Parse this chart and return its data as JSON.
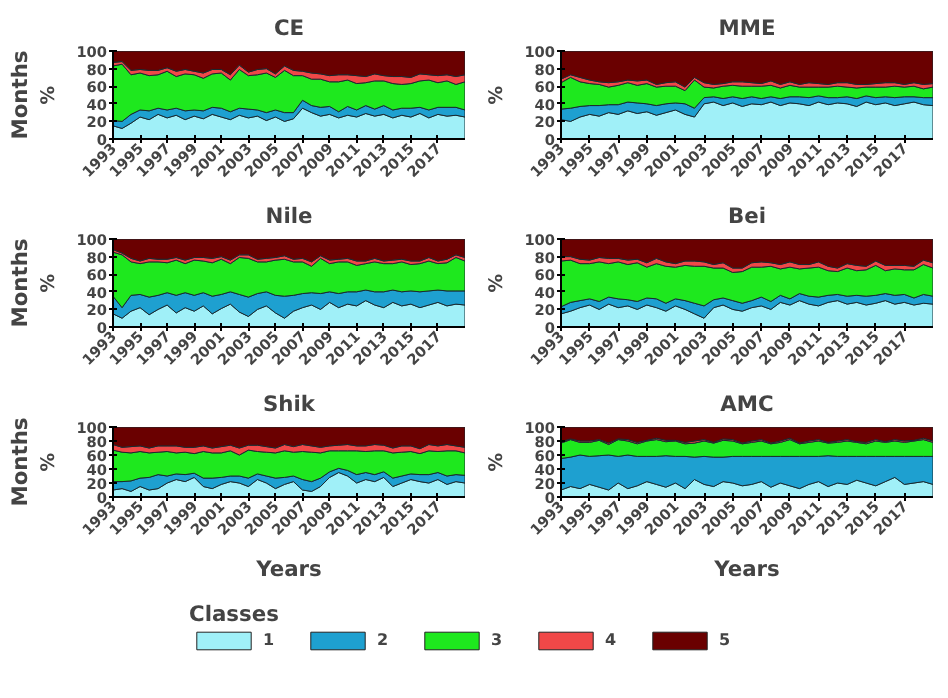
{
  "chart_data": [
    {
      "type": "area",
      "stacked": true,
      "title": "CE",
      "ylabel": "%",
      "annotations": [
        "Months"
      ],
      "xlim": [
        1993,
        2019
      ],
      "xticks": [
        1993,
        1995,
        1997,
        1999,
        2001,
        2003,
        2005,
        2007,
        2009,
        2011,
        2013,
        2015,
        2017
      ],
      "ylim": [
        0,
        100
      ],
      "yticks": [
        0,
        20,
        40,
        60,
        80,
        100
      ],
      "x": [
        1993,
        1993.67,
        1994.33,
        1995,
        1995.67,
        1996.33,
        1997,
        1997.67,
        1998.33,
        1999,
        1999.67,
        2000.33,
        2001,
        2001.67,
        2002.33,
        2003,
        2003.67,
        2004.33,
        2005,
        2005.67,
        2006.33,
        2007,
        2007.67,
        2008.33,
        2009,
        2009.67,
        2010.33,
        2011,
        2011.67,
        2012.33,
        2013,
        2013.67,
        2014.33,
        2015,
        2015.67,
        2016.33,
        2017,
        2017.67,
        2018.33,
        2019
      ],
      "series": [
        {
          "color": "#a0f0f8",
          "values": [
            15,
            12,
            18,
            25,
            22,
            28,
            24,
            27,
            22,
            26,
            23,
            28,
            25,
            22,
            27,
            24,
            26,
            21,
            25,
            20,
            23,
            35,
            30,
            26,
            28,
            24,
            27,
            25,
            29,
            26,
            28,
            24,
            27,
            25,
            29,
            24,
            28,
            26,
            27,
            25
          ]
        },
        {
          "color": "#1ea0d0",
          "values": [
            6,
            8,
            10,
            8,
            10,
            7,
            9,
            8,
            10,
            7,
            9,
            8,
            10,
            9,
            8,
            10,
            7,
            9,
            8,
            10,
            7,
            9,
            8,
            10,
            9,
            7,
            10,
            8,
            9,
            8,
            10,
            9,
            8,
            10,
            7,
            9,
            8,
            10,
            9,
            8
          ]
        },
        {
          "color": "#1ee81e",
          "values": [
            62,
            65,
            45,
            42,
            40,
            38,
            44,
            36,
            42,
            40,
            37,
            38,
            40,
            36,
            44,
            38,
            40,
            45,
            37,
            48,
            42,
            28,
            30,
            32,
            28,
            34,
            30,
            30,
            26,
            32,
            28,
            30,
            27,
            28,
            30,
            34,
            28,
            30,
            26,
            32
          ]
        },
        {
          "color": "#f04848",
          "values": [
            4,
            3,
            5,
            4,
            6,
            5,
            4,
            6,
            5,
            4,
            6,
            5,
            4,
            6,
            5,
            4,
            6,
            5,
            4,
            5,
            6,
            5,
            7,
            6,
            7,
            8,
            6,
            9,
            7,
            8,
            6,
            8,
            9,
            7,
            8,
            6,
            8,
            7,
            9,
            8
          ]
        },
        {
          "color": "#6a0000",
          "values": [
            13,
            12,
            22,
            21,
            22,
            22,
            19,
            23,
            21,
            23,
            25,
            21,
            21,
            27,
            16,
            24,
            21,
            20,
            26,
            17,
            22,
            23,
            25,
            26,
            28,
            27,
            27,
            28,
            29,
            26,
            28,
            29,
            29,
            30,
            26,
            27,
            28,
            27,
            29,
            27
          ]
        }
      ]
    },
    {
      "type": "area",
      "stacked": true,
      "title": "MME",
      "ylabel": "%",
      "xlim": [
        1993,
        2019
      ],
      "xticks": [
        1993,
        1995,
        1997,
        1999,
        2001,
        2003,
        2005,
        2007,
        2009,
        2011,
        2013,
        2015,
        2017
      ],
      "ylim": [
        0,
        100
      ],
      "yticks": [
        0,
        20,
        40,
        60,
        80,
        100
      ],
      "x": [
        1993,
        1993.67,
        1994.33,
        1995,
        1995.67,
        1996.33,
        1997,
        1997.67,
        1998.33,
        1999,
        1999.67,
        2000.33,
        2001,
        2001.67,
        2002.33,
        2003,
        2003.67,
        2004.33,
        2005,
        2005.67,
        2006.33,
        2007,
        2007.67,
        2008.33,
        2009,
        2009.67,
        2010.33,
        2011,
        2011.67,
        2012.33,
        2013,
        2013.67,
        2014.33,
        2015,
        2015.67,
        2016.33,
        2017,
        2017.67,
        2018.33,
        2019
      ],
      "series": [
        {
          "color": "#a0f0f8",
          "values": [
            22,
            20,
            25,
            28,
            26,
            30,
            28,
            32,
            29,
            31,
            27,
            30,
            33,
            28,
            25,
            40,
            42,
            38,
            41,
            37,
            40,
            39,
            42,
            38,
            41,
            40,
            38,
            42,
            39,
            41,
            40,
            37,
            42,
            39,
            41,
            38,
            40,
            42,
            39,
            38
          ]
        },
        {
          "color": "#1ea0d0",
          "values": [
            12,
            15,
            12,
            10,
            12,
            9,
            11,
            10,
            12,
            9,
            11,
            10,
            8,
            12,
            10,
            7,
            6,
            8,
            7,
            9,
            8,
            7,
            6,
            8,
            7,
            8,
            9,
            7,
            8,
            6,
            8,
            9,
            7,
            8,
            7,
            9,
            8,
            6,
            8,
            9
          ]
        },
        {
          "color": "#1ee81e",
          "values": [
            30,
            35,
            28,
            25,
            24,
            20,
            22,
            22,
            20,
            23,
            21,
            20,
            19,
            15,
            32,
            12,
            10,
            14,
            13,
            14,
            12,
            14,
            13,
            12,
            13,
            11,
            12,
            10,
            12,
            13,
            11,
            12,
            10,
            12,
            11,
            13,
            11,
            12,
            10,
            12
          ]
        },
        {
          "color": "#f04848",
          "values": [
            4,
            3,
            5,
            4,
            3,
            5,
            4,
            3,
            5,
            4,
            3,
            4,
            5,
            4,
            3,
            5,
            4,
            3,
            4,
            5,
            4,
            3,
            5,
            4,
            4,
            3,
            5,
            4,
            3,
            4,
            5,
            4,
            3,
            4,
            5,
            4,
            3,
            4,
            5,
            4
          ]
        },
        {
          "color": "#6a0000",
          "values": [
            32,
            27,
            30,
            33,
            35,
            36,
            35,
            33,
            34,
            33,
            38,
            36,
            35,
            41,
            30,
            36,
            38,
            37,
            35,
            35,
            36,
            37,
            34,
            38,
            35,
            38,
            36,
            37,
            38,
            36,
            36,
            38,
            38,
            37,
            36,
            36,
            38,
            36,
            38,
            37
          ]
        }
      ]
    },
    {
      "type": "area",
      "stacked": true,
      "title": "Nile",
      "ylabel": "%",
      "annotations": [
        "Months"
      ],
      "xlim": [
        1993,
        2019
      ],
      "xticks": [
        1993,
        1995,
        1997,
        1999,
        2001,
        2003,
        2005,
        2007,
        2009,
        2011,
        2013,
        2015,
        2017
      ],
      "ylim": [
        0,
        100
      ],
      "yticks": [
        0,
        20,
        40,
        60,
        80,
        100
      ],
      "x": [
        1993,
        1993.67,
        1994.33,
        1995,
        1995.67,
        1996.33,
        1997,
        1997.67,
        1998.33,
        1999,
        1999.67,
        2000.33,
        2001,
        2001.67,
        2002.33,
        2003,
        2003.67,
        2004.33,
        2005,
        2005.67,
        2006.33,
        2007,
        2007.67,
        2008.33,
        2009,
        2009.67,
        2010.33,
        2011,
        2011.67,
        2012.33,
        2013,
        2013.67,
        2014.33,
        2015,
        2015.67,
        2016.33,
        2017,
        2017.67,
        2018.33,
        2019
      ],
      "series": [
        {
          "color": "#a0f0f8",
          "values": [
            15,
            10,
            18,
            22,
            14,
            20,
            25,
            16,
            22,
            18,
            24,
            15,
            21,
            26,
            17,
            12,
            20,
            24,
            16,
            10,
            18,
            22,
            25,
            20,
            28,
            22,
            26,
            24,
            30,
            25,
            22,
            28,
            24,
            26,
            22,
            25,
            28,
            24,
            26,
            25
          ]
        },
        {
          "color": "#1ea0d0",
          "values": [
            20,
            12,
            18,
            15,
            20,
            16,
            14,
            20,
            17,
            18,
            15,
            20,
            16,
            14,
            20,
            22,
            18,
            16,
            20,
            25,
            18,
            16,
            14,
            18,
            12,
            16,
            14,
            16,
            12,
            15,
            18,
            14,
            16,
            15,
            18,
            16,
            14,
            17,
            15,
            16
          ]
        },
        {
          "color": "#1ee81e",
          "values": [
            50,
            60,
            38,
            35,
            40,
            38,
            34,
            40,
            33,
            40,
            36,
            38,
            40,
            32,
            42,
            44,
            36,
            34,
            40,
            42,
            38,
            36,
            30,
            40,
            32,
            36,
            34,
            30,
            30,
            34,
            32,
            30,
            34,
            30,
            32,
            34,
            30,
            32,
            38,
            34
          ]
        },
        {
          "color": "#f04848",
          "values": [
            3,
            2,
            4,
            3,
            4,
            3,
            4,
            3,
            4,
            3,
            4,
            5,
            3,
            4,
            3,
            4,
            3,
            4,
            3,
            4,
            3,
            4,
            5,
            3,
            4,
            3,
            4,
            5,
            3,
            4,
            3,
            4,
            3,
            4,
            3,
            4,
            3,
            4,
            3,
            4
          ]
        },
        {
          "color": "#6a0000",
          "values": [
            12,
            16,
            22,
            25,
            22,
            23,
            23,
            21,
            24,
            21,
            21,
            22,
            20,
            24,
            18,
            18,
            23,
            22,
            21,
            19,
            23,
            22,
            26,
            19,
            24,
            23,
            22,
            25,
            25,
            22,
            25,
            24,
            23,
            25,
            25,
            21,
            25,
            23,
            18,
            21
          ]
        }
      ]
    },
    {
      "type": "area",
      "stacked": true,
      "title": "Bei",
      "ylabel": "%",
      "xlim": [
        1993,
        2019
      ],
      "xticks": [
        1993,
        1995,
        1997,
        1999,
        2001,
        2003,
        2005,
        2007,
        2009,
        2011,
        2013,
        2015,
        2017
      ],
      "ylim": [
        0,
        100
      ],
      "yticks": [
        0,
        20,
        40,
        60,
        80,
        100
      ],
      "x": [
        1993,
        1993.67,
        1994.33,
        1995,
        1995.67,
        1996.33,
        1997,
        1997.67,
        1998.33,
        1999,
        1999.67,
        2000.33,
        2001,
        2001.67,
        2002.33,
        2003,
        2003.67,
        2004.33,
        2005,
        2005.67,
        2006.33,
        2007,
        2007.67,
        2008.33,
        2009,
        2009.67,
        2010.33,
        2011,
        2011.67,
        2012.33,
        2013,
        2013.67,
        2014.33,
        2015,
        2015.67,
        2016.33,
        2017,
        2017.67,
        2018.33,
        2019
      ],
      "series": [
        {
          "color": "#a0f0f8",
          "values": [
            15,
            18,
            22,
            25,
            20,
            26,
            22,
            24,
            20,
            25,
            22,
            18,
            24,
            20,
            15,
            10,
            22,
            25,
            20,
            18,
            22,
            24,
            20,
            28,
            25,
            30,
            26,
            24,
            28,
            30,
            26,
            28,
            25,
            27,
            30,
            26,
            28,
            25,
            27,
            26
          ]
        },
        {
          "color": "#1ea0d0",
          "values": [
            8,
            10,
            8,
            7,
            9,
            8,
            10,
            7,
            9,
            8,
            10,
            9,
            8,
            10,
            12,
            14,
            9,
            8,
            10,
            9,
            8,
            10,
            9,
            8,
            7,
            8,
            9,
            10,
            8,
            7,
            9,
            8,
            10,
            9,
            8,
            10,
            9,
            8,
            10,
            9
          ]
        },
        {
          "color": "#1ee81e",
          "values": [
            52,
            48,
            42,
            40,
            45,
            38,
            42,
            40,
            44,
            35,
            40,
            42,
            36,
            40,
            42,
            45,
            36,
            34,
            32,
            36,
            38,
            34,
            40,
            30,
            36,
            28,
            32,
            34,
            28,
            26,
            32,
            28,
            30,
            34,
            26,
            30,
            28,
            32,
            34,
            32
          ]
        },
        {
          "color": "#f04848",
          "values": [
            5,
            4,
            5,
            4,
            5,
            6,
            4,
            5,
            4,
            5,
            6,
            5,
            4,
            5,
            6,
            5,
            4,
            6,
            5,
            4,
            5,
            6,
            4,
            5,
            6,
            5,
            4,
            6,
            5,
            4,
            5,
            6,
            4,
            5,
            6,
            4,
            5,
            4,
            5,
            6
          ]
        },
        {
          "color": "#6a0000",
          "values": [
            20,
            20,
            23,
            24,
            21,
            22,
            22,
            24,
            23,
            27,
            22,
            26,
            28,
            25,
            25,
            26,
            29,
            27,
            33,
            33,
            27,
            26,
            27,
            29,
            26,
            29,
            29,
            26,
            31,
            33,
            28,
            30,
            31,
            25,
            30,
            30,
            30,
            31,
            24,
            27
          ]
        }
      ]
    },
    {
      "type": "area",
      "stacked": true,
      "title": "Shik",
      "ylabel": "%",
      "xlabel": "Years",
      "annotations": [
        "Months"
      ],
      "xlim": [
        1993,
        2019
      ],
      "xticks": [
        1993,
        1995,
        1997,
        1999,
        2001,
        2003,
        2005,
        2007,
        2009,
        2011,
        2013,
        2015,
        2017
      ],
      "ylim": [
        0,
        100
      ],
      "yticks": [
        0,
        20,
        40,
        60,
        80,
        100
      ],
      "x": [
        1993,
        1993.67,
        1994.33,
        1995,
        1995.67,
        1996.33,
        1997,
        1997.67,
        1998.33,
        1999,
        1999.67,
        2000.33,
        2001,
        2001.67,
        2002.33,
        2003,
        2003.67,
        2004.33,
        2005,
        2005.67,
        2006.33,
        2007,
        2007.67,
        2008.33,
        2009,
        2009.67,
        2010.33,
        2011,
        2011.67,
        2012.33,
        2013,
        2013.67,
        2014.33,
        2015,
        2015.67,
        2016.33,
        2017,
        2017.67,
        2018.33,
        2019
      ],
      "series": [
        {
          "color": "#a0f0f8",
          "values": [
            10,
            12,
            8,
            15,
            10,
            12,
            20,
            25,
            22,
            28,
            15,
            12,
            18,
            22,
            20,
            15,
            25,
            20,
            12,
            18,
            22,
            10,
            8,
            15,
            28,
            35,
            30,
            20,
            25,
            22,
            28,
            15,
            20,
            25,
            22,
            20,
            25,
            18,
            22,
            20
          ]
        },
        {
          "color": "#1ea0d0",
          "values": [
            12,
            10,
            15,
            12,
            18,
            20,
            10,
            8,
            10,
            6,
            12,
            15,
            10,
            8,
            10,
            12,
            8,
            10,
            15,
            10,
            8,
            15,
            14,
            12,
            8,
            6,
            8,
            12,
            10,
            10,
            8,
            12,
            10,
            8,
            10,
            12,
            10,
            12,
            10,
            11
          ]
        },
        {
          "color": "#1ee81e",
          "values": [
            45,
            42,
            40,
            38,
            35,
            32,
            35,
            30,
            32,
            28,
            38,
            36,
            35,
            36,
            30,
            40,
            32,
            34,
            36,
            38,
            34,
            40,
            42,
            36,
            30,
            25,
            28,
            34,
            30,
            34,
            30,
            36,
            34,
            32,
            30,
            34,
            30,
            36,
            34,
            32
          ]
        },
        {
          "color": "#f04848",
          "values": [
            8,
            7,
            9,
            8,
            7,
            9,
            8,
            10,
            7,
            9,
            8,
            7,
            9,
            8,
            10,
            7,
            9,
            8,
            7,
            9,
            8,
            10,
            9,
            8,
            7,
            8,
            9,
            7,
            8,
            9,
            8,
            7,
            9,
            8,
            7,
            9,
            8,
            9,
            7,
            8
          ]
        },
        {
          "color": "#6a0000",
          "values": [
            25,
            29,
            28,
            27,
            30,
            27,
            27,
            27,
            29,
            29,
            27,
            30,
            28,
            26,
            30,
            26,
            26,
            28,
            30,
            25,
            28,
            25,
            27,
            29,
            27,
            26,
            25,
            27,
            27,
            25,
            26,
            30,
            27,
            27,
            31,
            25,
            27,
            25,
            27,
            29
          ]
        }
      ]
    },
    {
      "type": "area",
      "stacked": true,
      "title": "AMC",
      "ylabel": "%",
      "xlabel": "Years",
      "legend": "bottom",
      "legend_title": "Classes",
      "xlim": [
        1993,
        2019
      ],
      "xticks": [
        1993,
        1995,
        1997,
        1999,
        2001,
        2003,
        2005,
        2007,
        2009,
        2011,
        2013,
        2015,
        2017
      ],
      "ylim": [
        0,
        100
      ],
      "yticks": [
        0,
        20,
        40,
        60,
        80,
        100
      ],
      "x": [
        1993,
        1993.67,
        1994.33,
        1995,
        1995.67,
        1996.33,
        1997,
        1997.67,
        1998.33,
        1999,
        1999.67,
        2000.33,
        2001,
        2001.67,
        2002.33,
        2003,
        2003.67,
        2004.33,
        2005,
        2005.67,
        2006.33,
        2007,
        2007.67,
        2008.33,
        2009,
        2009.67,
        2010.33,
        2011,
        2011.67,
        2012.33,
        2013,
        2013.67,
        2014.33,
        2015,
        2015.67,
        2016.33,
        2017,
        2017.67,
        2018.33,
        2019
      ],
      "series": [
        {
          "name": "1",
          "color": "#a0f0f8",
          "values": [
            10,
            15,
            12,
            18,
            14,
            10,
            20,
            12,
            16,
            22,
            18,
            14,
            20,
            12,
            25,
            18,
            15,
            22,
            20,
            16,
            18,
            22,
            14,
            20,
            16,
            12,
            18,
            22,
            15,
            20,
            18,
            24,
            20,
            16,
            22,
            28,
            18,
            20,
            22,
            18
          ]
        },
        {
          "name": "2",
          "color": "#1ea0d0",
          "values": [
            45,
            42,
            48,
            40,
            45,
            50,
            38,
            48,
            42,
            36,
            40,
            45,
            38,
            46,
            32,
            40,
            42,
            35,
            38,
            42,
            40,
            36,
            44,
            38,
            42,
            46,
            40,
            36,
            44,
            38,
            40,
            34,
            38,
            42,
            36,
            30,
            40,
            38,
            36,
            40
          ]
        },
        {
          "name": "3",
          "color": "#1ee81e",
          "values": [
            22,
            25,
            18,
            20,
            22,
            15,
            24,
            20,
            18,
            22,
            24,
            20,
            22,
            18,
            20,
            22,
            20,
            24,
            22,
            18,
            20,
            22,
            18,
            20,
            24,
            18,
            20,
            22,
            18,
            20,
            22,
            20,
            18,
            22,
            20,
            22,
            20,
            22,
            24,
            20
          ]
        },
        {
          "name": "4",
          "color": "#f04848",
          "values": [
            2,
            1,
            2,
            2,
            1,
            2,
            1,
            2,
            2,
            1,
            2,
            2,
            1,
            2,
            3,
            2,
            1,
            2,
            2,
            1,
            2,
            2,
            1,
            2,
            2,
            1,
            2,
            2,
            1,
            2,
            2,
            1,
            2,
            2,
            1,
            2,
            2,
            1,
            2,
            2
          ]
        },
        {
          "name": "5",
          "color": "#6a0000",
          "values": [
            21,
            17,
            20,
            20,
            18,
            23,
            17,
            18,
            22,
            19,
            16,
            19,
            19,
            22,
            20,
            18,
            22,
            17,
            18,
            23,
            20,
            18,
            23,
            20,
            16,
            23,
            20,
            18,
            22,
            20,
            18,
            21,
            22,
            18,
            21,
            18,
            20,
            19,
            16,
            20
          ]
        }
      ]
    }
  ]
}
